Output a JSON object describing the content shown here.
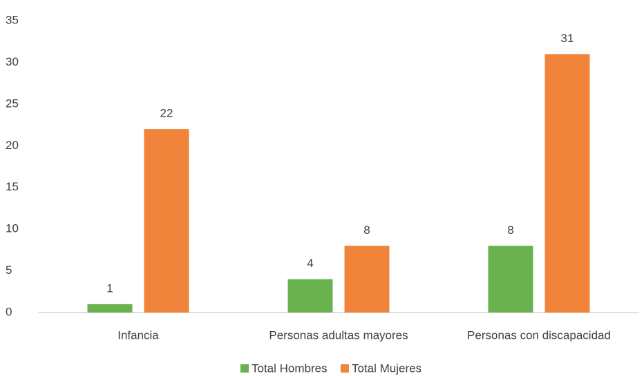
{
  "chart_data": {
    "type": "bar",
    "categories": [
      "Infancia",
      "Personas adultas mayores",
      "Personas con discapacidad"
    ],
    "series": [
      {
        "name": "Total Hombres",
        "color": "#6ab150",
        "values": [
          1,
          4,
          8
        ]
      },
      {
        "name": "Total Mujeres",
        "color": "#f0843a",
        "values": [
          22,
          8,
          31
        ]
      }
    ],
    "ylim": [
      0,
      35
    ],
    "yticks": [
      0,
      5,
      10,
      15,
      20,
      25,
      30,
      35
    ],
    "grid": false,
    "legend": "bottom"
  }
}
